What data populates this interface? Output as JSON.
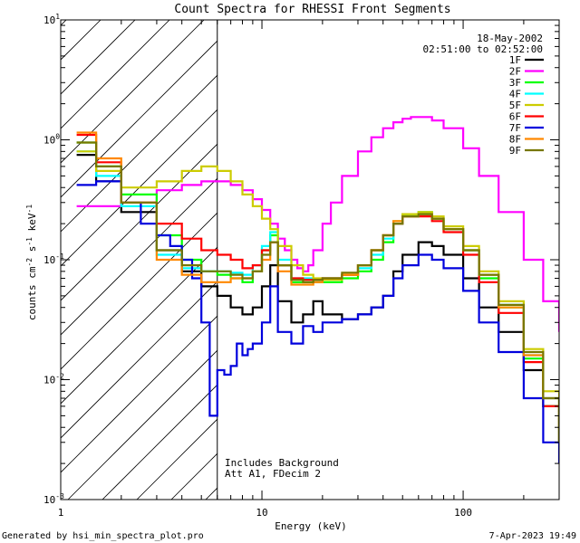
{
  "chart_data": {
    "type": "line",
    "title": "Count Spectra for RHESSI Front Segments",
    "xlabel": "Energy (keV)",
    "ylabel_base": "counts cm",
    "ylabel_exp1": "-2",
    "ylabel_mid": " s",
    "ylabel_exp2": "-1",
    "ylabel_mid2": " keV",
    "ylabel_exp3": "-1",
    "xscale": "log",
    "yscale": "log",
    "xlim": [
      1,
      300
    ],
    "ylim": [
      0.001,
      10
    ],
    "x_ticks": [
      {
        "v": 1,
        "label": "1"
      },
      {
        "v": 10,
        "label": "10"
      },
      {
        "v": 100,
        "label": "100"
      }
    ],
    "y_ticks": [
      {
        "v": 0.001,
        "base": "10",
        "exp": "-3"
      },
      {
        "v": 0.01,
        "base": "10",
        "exp": "-2"
      },
      {
        "v": 0.1,
        "base": "10",
        "exp": "-1"
      },
      {
        "v": 1,
        "base": "10",
        "exp": "0"
      },
      {
        "v": 10,
        "base": "10",
        "exp": "1"
      }
    ],
    "date": "18-May-2002",
    "time_range": "02:51:00 to 02:52:00",
    "shaded_region_max_kev": 6,
    "notes": [
      "Includes Background",
      "Att A1, FDecim 2"
    ],
    "series": [
      {
        "name": "1F",
        "color": "#000000",
        "x": [
          1.2,
          1.5,
          2,
          3,
          4,
          5,
          6,
          7,
          8,
          9,
          10,
          11,
          12,
          14,
          16,
          18,
          20,
          25,
          30,
          35,
          40,
          45,
          50,
          60,
          70,
          80,
          100,
          120,
          150,
          200,
          250,
          300
        ],
        "y": [
          0.75,
          0.45,
          0.25,
          0.12,
          0.08,
          0.06,
          0.05,
          0.04,
          0.035,
          0.04,
          0.06,
          0.09,
          0.045,
          0.03,
          0.035,
          0.045,
          0.035,
          0.032,
          0.035,
          0.04,
          0.05,
          0.08,
          0.11,
          0.14,
          0.13,
          0.11,
          0.07,
          0.04,
          0.025,
          0.012,
          0.006,
          0.003
        ]
      },
      {
        "name": "2F",
        "color": "#ff00ff",
        "x": [
          1.2,
          1.5,
          2,
          3,
          4,
          5,
          6,
          7,
          8,
          9,
          10,
          11,
          12,
          13,
          14,
          15,
          16,
          17,
          18,
          20,
          22,
          25,
          30,
          35,
          40,
          45,
          50,
          55,
          60,
          70,
          80,
          100,
          120,
          150,
          200,
          250,
          300
        ],
        "y": [
          0.28,
          0.28,
          0.3,
          0.38,
          0.42,
          0.45,
          0.45,
          0.42,
          0.38,
          0.32,
          0.26,
          0.2,
          0.15,
          0.12,
          0.1,
          0.085,
          0.08,
          0.09,
          0.12,
          0.2,
          0.3,
          0.5,
          0.8,
          1.05,
          1.25,
          1.4,
          1.5,
          1.55,
          1.55,
          1.45,
          1.25,
          0.85,
          0.5,
          0.25,
          0.1,
          0.045,
          0.025
        ]
      },
      {
        "name": "3F",
        "color": "#00ff00",
        "x": [
          1.2,
          1.5,
          2,
          3,
          4,
          5,
          6,
          7,
          8,
          9,
          10,
          11,
          12,
          14,
          16,
          18,
          20,
          25,
          30,
          35,
          40,
          45,
          50,
          60,
          70,
          80,
          100,
          120,
          150,
          200,
          250,
          300
        ],
        "y": [
          0.95,
          0.6,
          0.35,
          0.16,
          0.1,
          0.08,
          0.075,
          0.07,
          0.065,
          0.08,
          0.12,
          0.16,
          0.09,
          0.065,
          0.065,
          0.065,
          0.065,
          0.07,
          0.08,
          0.1,
          0.14,
          0.2,
          0.24,
          0.25,
          0.22,
          0.18,
          0.12,
          0.07,
          0.04,
          0.015,
          0.006,
          0.003
        ]
      },
      {
        "name": "4F",
        "color": "#00ffff",
        "x": [
          1.2,
          1.5,
          2,
          3,
          4,
          5,
          6,
          7,
          8,
          9,
          10,
          11,
          12,
          14,
          16,
          18,
          20,
          25,
          30,
          35,
          40,
          45,
          50,
          60,
          70,
          80,
          100,
          120,
          150,
          200,
          250,
          300
        ],
        "y": [
          0.8,
          0.5,
          0.28,
          0.11,
          0.085,
          0.08,
          0.08,
          0.078,
          0.075,
          0.09,
          0.13,
          0.17,
          0.1,
          0.07,
          0.07,
          0.068,
          0.07,
          0.075,
          0.085,
          0.11,
          0.15,
          0.2,
          0.23,
          0.24,
          0.22,
          0.18,
          0.12,
          0.075,
          0.042,
          0.016,
          0.007,
          0.003
        ]
      },
      {
        "name": "5F",
        "color": "#cccc00",
        "x": [
          1.2,
          1.5,
          2,
          3,
          4,
          5,
          6,
          7,
          8,
          9,
          10,
          11,
          12,
          14,
          16,
          18,
          20,
          25,
          30,
          35,
          40,
          45,
          50,
          60,
          70,
          80,
          100,
          120,
          150,
          200,
          250,
          300
        ],
        "y": [
          0.8,
          0.55,
          0.4,
          0.45,
          0.55,
          0.6,
          0.55,
          0.45,
          0.35,
          0.28,
          0.22,
          0.18,
          0.13,
          0.09,
          0.075,
          0.07,
          0.068,
          0.075,
          0.09,
          0.12,
          0.16,
          0.21,
          0.24,
          0.25,
          0.23,
          0.19,
          0.13,
          0.08,
          0.045,
          0.018,
          0.008,
          0.004
        ]
      },
      {
        "name": "6F",
        "color": "#ff0000",
        "x": [
          1.2,
          1.5,
          2,
          3,
          4,
          5,
          6,
          7,
          8,
          9,
          10,
          11,
          12,
          14,
          16,
          18,
          20,
          25,
          30,
          35,
          40,
          45,
          50,
          60,
          70,
          80,
          100,
          120,
          150,
          200,
          250,
          300
        ],
        "y": [
          1.1,
          0.65,
          0.3,
          0.2,
          0.15,
          0.12,
          0.11,
          0.1,
          0.085,
          0.09,
          0.12,
          0.14,
          0.09,
          0.07,
          0.068,
          0.068,
          0.07,
          0.075,
          0.09,
          0.12,
          0.16,
          0.2,
          0.23,
          0.23,
          0.21,
          0.17,
          0.11,
          0.065,
          0.036,
          0.014,
          0.006,
          0.003
        ]
      },
      {
        "name": "7F",
        "color": "#0000dd",
        "x": [
          1.2,
          1.5,
          2,
          2.5,
          3,
          3.5,
          4,
          4.5,
          5,
          5.5,
          6,
          6.5,
          7,
          7.5,
          8,
          8.5,
          9,
          10,
          11,
          12,
          14,
          16,
          18,
          20,
          25,
          30,
          35,
          40,
          45,
          50,
          60,
          70,
          80,
          100,
          120,
          150,
          200,
          250,
          300
        ],
        "y": [
          0.42,
          0.45,
          0.3,
          0.2,
          0.16,
          0.13,
          0.1,
          0.07,
          0.03,
          0.005,
          0.012,
          0.011,
          0.013,
          0.02,
          0.016,
          0.018,
          0.02,
          0.03,
          0.06,
          0.025,
          0.02,
          0.028,
          0.025,
          0.03,
          0.032,
          0.035,
          0.04,
          0.05,
          0.07,
          0.09,
          0.11,
          0.1,
          0.085,
          0.055,
          0.03,
          0.017,
          0.007,
          0.003,
          0.002
        ]
      },
      {
        "name": "8F",
        "color": "#ff8800",
        "x": [
          1.2,
          1.5,
          2,
          3,
          4,
          5,
          6,
          7,
          8,
          9,
          10,
          11,
          12,
          14,
          16,
          18,
          20,
          25,
          30,
          35,
          40,
          45,
          50,
          60,
          70,
          80,
          100,
          120,
          150,
          200,
          250,
          300
        ],
        "y": [
          1.15,
          0.7,
          0.3,
          0.1,
          0.075,
          0.065,
          0.065,
          0.07,
          0.07,
          0.08,
          0.1,
          0.14,
          0.08,
          0.062,
          0.062,
          0.065,
          0.07,
          0.075,
          0.09,
          0.12,
          0.16,
          0.21,
          0.23,
          0.24,
          0.22,
          0.18,
          0.12,
          0.075,
          0.04,
          0.016,
          0.007,
          0.003
        ]
      },
      {
        "name": "9F",
        "color": "#777700",
        "x": [
          1.2,
          1.5,
          2,
          3,
          4,
          5,
          6,
          7,
          8,
          9,
          10,
          11,
          12,
          14,
          16,
          18,
          20,
          25,
          30,
          35,
          40,
          45,
          50,
          60,
          70,
          80,
          100,
          120,
          150,
          200,
          250,
          300
        ],
        "y": [
          0.95,
          0.6,
          0.3,
          0.12,
          0.09,
          0.08,
          0.08,
          0.075,
          0.07,
          0.08,
          0.11,
          0.14,
          0.09,
          0.068,
          0.065,
          0.068,
          0.07,
          0.078,
          0.09,
          0.12,
          0.16,
          0.2,
          0.23,
          0.24,
          0.22,
          0.18,
          0.12,
          0.075,
          0.042,
          0.017,
          0.007,
          0.003
        ]
      }
    ]
  },
  "footer": {
    "generated_by": "Generated by hsi_min_spectra_plot.pro",
    "timestamp": "7-Apr-2023 19:49"
  }
}
